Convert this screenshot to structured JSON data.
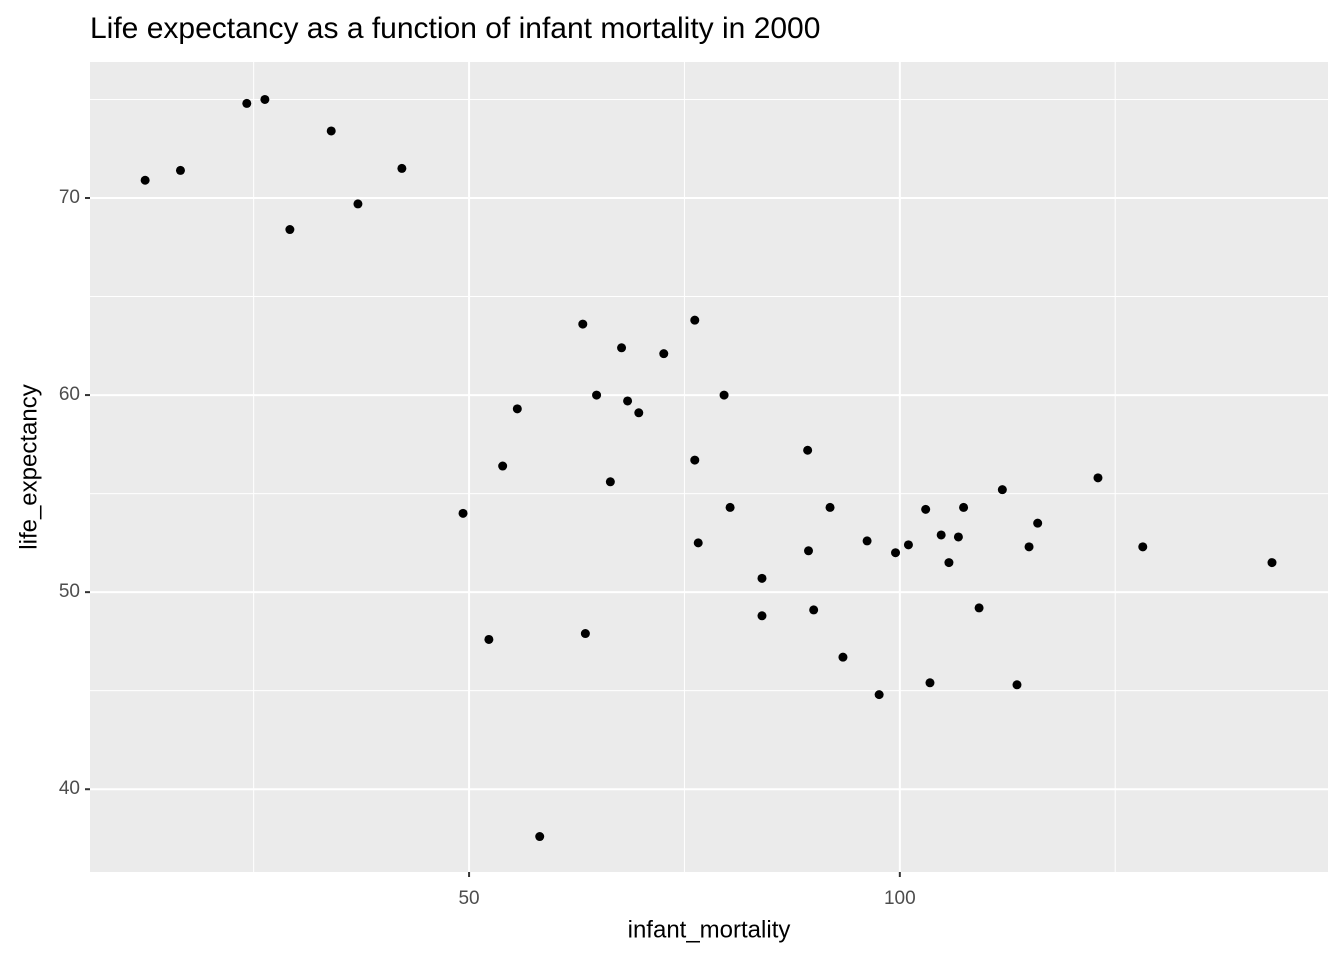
{
  "chart_data": {
    "type": "scatter",
    "title": "Life expectancy as a function of infant mortality in 2000",
    "x_label": "infant_mortality",
    "y_label": "life_expectancy",
    "x": [
      12.4,
      16.5,
      24.2,
      26.3,
      29.2,
      34.0,
      37.1,
      42.2,
      49.3,
      52.3,
      53.9,
      55.6,
      58.2,
      63.2,
      63.5,
      64.8,
      66.4,
      67.7,
      68.4,
      69.7,
      72.6,
      76.2,
      76.2,
      76.6,
      79.6,
      80.3,
      84.0,
      84.0,
      89.3,
      89.4,
      90.0,
      91.9,
      93.4,
      96.2,
      97.6,
      99.5,
      101.0,
      103.0,
      103.5,
      104.8,
      105.7,
      106.8,
      107.4,
      109.2,
      111.9,
      113.6,
      115.0,
      116.0,
      123.0,
      128.2,
      143.2
    ],
    "values": [
      70.9,
      71.4,
      74.8,
      75.0,
      68.4,
      73.4,
      69.7,
      71.5,
      54.0,
      47.6,
      56.4,
      59.3,
      37.6,
      63.6,
      47.9,
      60.0,
      55.6,
      62.4,
      59.7,
      59.1,
      62.1,
      63.8,
      56.7,
      52.5,
      60.0,
      54.3,
      50.7,
      48.8,
      57.2,
      52.1,
      49.1,
      54.3,
      46.7,
      52.6,
      44.8,
      52.0,
      52.4,
      54.2,
      45.4,
      52.9,
      51.5,
      52.8,
      54.3,
      49.2,
      55.2,
      45.3,
      52.3,
      53.5,
      55.8,
      52.3,
      51.5
    ],
    "color": "#000000",
    "xlim": [
      6.0,
      149.7
    ],
    "xticks": [
      50,
      100
    ],
    "ylim": [
      35.8,
      76.9
    ],
    "yticks": [
      40,
      50,
      60,
      70
    ],
    "grid": true
  }
}
